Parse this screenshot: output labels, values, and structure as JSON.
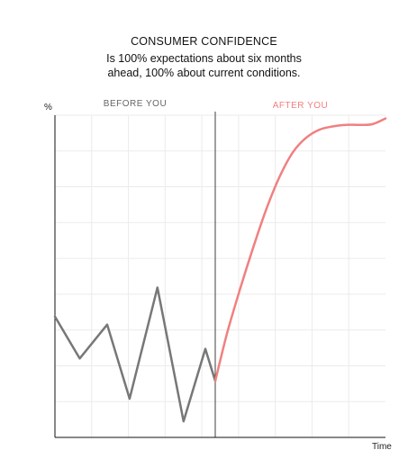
{
  "chart_data": {
    "type": "line",
    "title": "CONSUMER CONFIDENCE",
    "subtitle_lines": [
      "Is 100% expectations about six months",
      "ahead, 100% about current conditions."
    ],
    "ylabel": "%",
    "xlabel": "Time",
    "ylim": [
      0,
      100
    ],
    "xlim": [
      0,
      100
    ],
    "grid": true,
    "divider_x": 48.5,
    "region_labels": {
      "before": "BEFORE YOU",
      "after": "AFTER YOU"
    },
    "series": [
      {
        "color": "#777777",
        "x": [
          0,
          7.5,
          15.8,
          22.6,
          31,
          38.9,
          45.5,
          48.5
        ],
        "y": [
          37.5,
          24.5,
          35,
          12,
          46.5,
          5,
          27.5,
          17.5
        ]
      },
      {
        "color": "#f08080",
        "x": [
          48.5,
          52,
          56,
          60,
          64,
          68,
          72,
          76,
          80,
          84,
          88,
          92,
          96,
          100
        ],
        "y": [
          17.5,
          32,
          46,
          59,
          71,
          81,
          88.5,
          93,
          95.5,
          96.5,
          97,
          97,
          97.2,
          99
        ]
      }
    ]
  }
}
